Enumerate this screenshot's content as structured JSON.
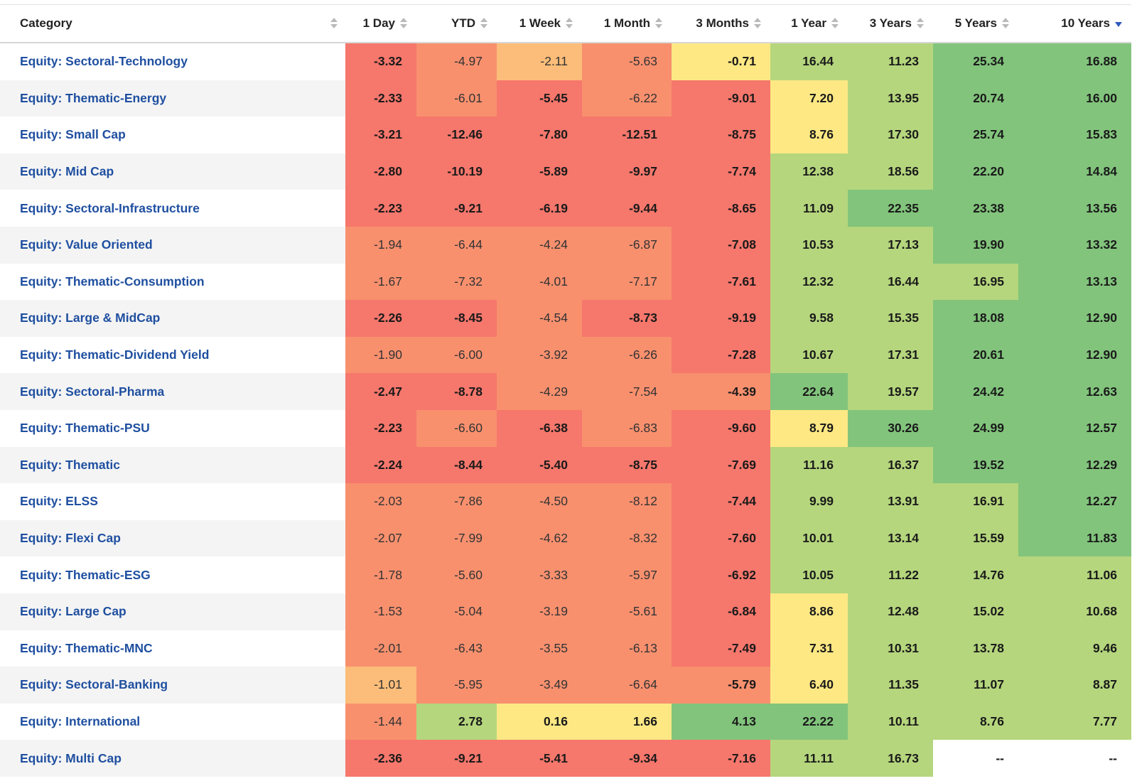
{
  "headers": [
    {
      "key": "category",
      "label": "Category",
      "sort": "none"
    },
    {
      "key": "d1",
      "label": "1 Day",
      "sort": "none"
    },
    {
      "key": "ytd",
      "label": "YTD",
      "sort": "none"
    },
    {
      "key": "w1",
      "label": "1 Week",
      "sort": "none"
    },
    {
      "key": "m1",
      "label": "1 Month",
      "sort": "none"
    },
    {
      "key": "m3",
      "label": "3 Months",
      "sort": "none"
    },
    {
      "key": "y1",
      "label": "1 Year",
      "sort": "none"
    },
    {
      "key": "y3",
      "label": "3 Years",
      "sort": "none"
    },
    {
      "key": "y5",
      "label": "5 Years",
      "sort": "none"
    },
    {
      "key": "y10",
      "label": "10 Years",
      "sort": "descending"
    }
  ],
  "heat_colors": {
    "r": "#f6776c",
    "o": "#f8906e",
    "lo": "#fbbd79",
    "y": "#fde884",
    "lg": "#b5d67d",
    "g": "#82c47c",
    "na": "#ffffff"
  },
  "rows": [
    {
      "category": "Equity: Sectoral-Technology",
      "values": [
        "-3.32",
        "-4.97",
        "-2.11",
        "-5.63",
        "-0.71",
        "16.44",
        "11.23",
        "25.34",
        "16.88"
      ],
      "colors": [
        "r",
        "o",
        "lo",
        "o",
        "y",
        "lg",
        "lg",
        "g",
        "g"
      ]
    },
    {
      "category": "Equity: Thematic-Energy",
      "values": [
        "-2.33",
        "-6.01",
        "-5.45",
        "-6.22",
        "-9.01",
        "7.20",
        "13.95",
        "20.74",
        "16.00"
      ],
      "colors": [
        "r",
        "o",
        "r",
        "o",
        "r",
        "y",
        "lg",
        "g",
        "g"
      ]
    },
    {
      "category": "Equity: Small Cap",
      "values": [
        "-3.21",
        "-12.46",
        "-7.80",
        "-12.51",
        "-8.75",
        "8.76",
        "17.30",
        "25.74",
        "15.83"
      ],
      "colors": [
        "r",
        "r",
        "r",
        "r",
        "r",
        "y",
        "lg",
        "g",
        "g"
      ]
    },
    {
      "category": "Equity: Mid Cap",
      "values": [
        "-2.80",
        "-10.19",
        "-5.89",
        "-9.97",
        "-7.74",
        "12.38",
        "18.56",
        "22.20",
        "14.84"
      ],
      "colors": [
        "r",
        "r",
        "r",
        "r",
        "r",
        "lg",
        "lg",
        "g",
        "g"
      ]
    },
    {
      "category": "Equity: Sectoral-Infrastructure",
      "values": [
        "-2.23",
        "-9.21",
        "-6.19",
        "-9.44",
        "-8.65",
        "11.09",
        "22.35",
        "23.38",
        "13.56"
      ],
      "colors": [
        "r",
        "r",
        "r",
        "r",
        "r",
        "lg",
        "g",
        "g",
        "g"
      ]
    },
    {
      "category": "Equity: Value Oriented",
      "values": [
        "-1.94",
        "-6.44",
        "-4.24",
        "-6.87",
        "-7.08",
        "10.53",
        "17.13",
        "19.90",
        "13.32"
      ],
      "colors": [
        "o",
        "o",
        "o",
        "o",
        "r",
        "lg",
        "lg",
        "g",
        "g"
      ]
    },
    {
      "category": "Equity: Thematic-Consumption",
      "values": [
        "-1.67",
        "-7.32",
        "-4.01",
        "-7.17",
        "-7.61",
        "12.32",
        "16.44",
        "16.95",
        "13.13"
      ],
      "colors": [
        "o",
        "o",
        "o",
        "o",
        "r",
        "lg",
        "lg",
        "lg",
        "g"
      ]
    },
    {
      "category": "Equity: Large & MidCap",
      "values": [
        "-2.26",
        "-8.45",
        "-4.54",
        "-8.73",
        "-9.19",
        "9.58",
        "15.35",
        "18.08",
        "12.90"
      ],
      "colors": [
        "r",
        "r",
        "o",
        "r",
        "r",
        "lg",
        "lg",
        "g",
        "g"
      ]
    },
    {
      "category": "Equity: Thematic-Dividend Yield",
      "values": [
        "-1.90",
        "-6.00",
        "-3.92",
        "-6.26",
        "-7.28",
        "10.67",
        "17.31",
        "20.61",
        "12.90"
      ],
      "colors": [
        "o",
        "o",
        "o",
        "o",
        "r",
        "lg",
        "lg",
        "g",
        "g"
      ]
    },
    {
      "category": "Equity: Sectoral-Pharma",
      "values": [
        "-2.47",
        "-8.78",
        "-4.29",
        "-7.54",
        "-4.39",
        "22.64",
        "19.57",
        "24.42",
        "12.63"
      ],
      "colors": [
        "r",
        "r",
        "o",
        "o",
        "o",
        "g",
        "lg",
        "g",
        "g"
      ]
    },
    {
      "category": "Equity: Thematic-PSU",
      "values": [
        "-2.23",
        "-6.60",
        "-6.38",
        "-6.83",
        "-9.60",
        "8.79",
        "30.26",
        "24.99",
        "12.57"
      ],
      "colors": [
        "r",
        "o",
        "r",
        "o",
        "r",
        "y",
        "g",
        "g",
        "g"
      ]
    },
    {
      "category": "Equity: Thematic",
      "values": [
        "-2.24",
        "-8.44",
        "-5.40",
        "-8.75",
        "-7.69",
        "11.16",
        "16.37",
        "19.52",
        "12.29"
      ],
      "colors": [
        "r",
        "r",
        "r",
        "r",
        "r",
        "lg",
        "lg",
        "g",
        "g"
      ]
    },
    {
      "category": "Equity: ELSS",
      "values": [
        "-2.03",
        "-7.86",
        "-4.50",
        "-8.12",
        "-7.44",
        "9.99",
        "13.91",
        "16.91",
        "12.27"
      ],
      "colors": [
        "o",
        "o",
        "o",
        "o",
        "r",
        "lg",
        "lg",
        "lg",
        "g"
      ]
    },
    {
      "category": "Equity: Flexi Cap",
      "values": [
        "-2.07",
        "-7.99",
        "-4.62",
        "-8.32",
        "-7.60",
        "10.01",
        "13.14",
        "15.59",
        "11.83"
      ],
      "colors": [
        "o",
        "o",
        "o",
        "o",
        "r",
        "lg",
        "lg",
        "lg",
        "g"
      ]
    },
    {
      "category": "Equity: Thematic-ESG",
      "values": [
        "-1.78",
        "-5.60",
        "-3.33",
        "-5.97",
        "-6.92",
        "10.05",
        "11.22",
        "14.76",
        "11.06"
      ],
      "colors": [
        "o",
        "o",
        "o",
        "o",
        "r",
        "lg",
        "lg",
        "lg",
        "lg"
      ]
    },
    {
      "category": "Equity: Large Cap",
      "values": [
        "-1.53",
        "-5.04",
        "-3.19",
        "-5.61",
        "-6.84",
        "8.86",
        "12.48",
        "15.02",
        "10.68"
      ],
      "colors": [
        "o",
        "o",
        "o",
        "o",
        "r",
        "y",
        "lg",
        "lg",
        "lg"
      ]
    },
    {
      "category": "Equity: Thematic-MNC",
      "values": [
        "-2.01",
        "-6.43",
        "-3.55",
        "-6.13",
        "-7.49",
        "7.31",
        "10.31",
        "13.78",
        "9.46"
      ],
      "colors": [
        "o",
        "o",
        "o",
        "o",
        "r",
        "y",
        "lg",
        "lg",
        "lg"
      ]
    },
    {
      "category": "Equity: Sectoral-Banking",
      "values": [
        "-1.01",
        "-5.95",
        "-3.49",
        "-6.64",
        "-5.79",
        "6.40",
        "11.35",
        "11.07",
        "8.87"
      ],
      "colors": [
        "lo",
        "o",
        "o",
        "o",
        "o",
        "y",
        "lg",
        "lg",
        "lg"
      ]
    },
    {
      "category": "Equity: International",
      "values": [
        "-1.44",
        "2.78",
        "0.16",
        "1.66",
        "4.13",
        "22.22",
        "10.11",
        "8.76",
        "7.77"
      ],
      "colors": [
        "o",
        "lg",
        "y",
        "y",
        "g",
        "g",
        "lg",
        "lg",
        "lg"
      ]
    },
    {
      "category": "Equity: Multi Cap",
      "values": [
        "-2.36",
        "-9.21",
        "-5.41",
        "-9.34",
        "-7.16",
        "11.11",
        "16.73",
        "--",
        "--"
      ],
      "colors": [
        "r",
        "r",
        "r",
        "r",
        "r",
        "lg",
        "lg",
        "na",
        "na"
      ]
    }
  ]
}
